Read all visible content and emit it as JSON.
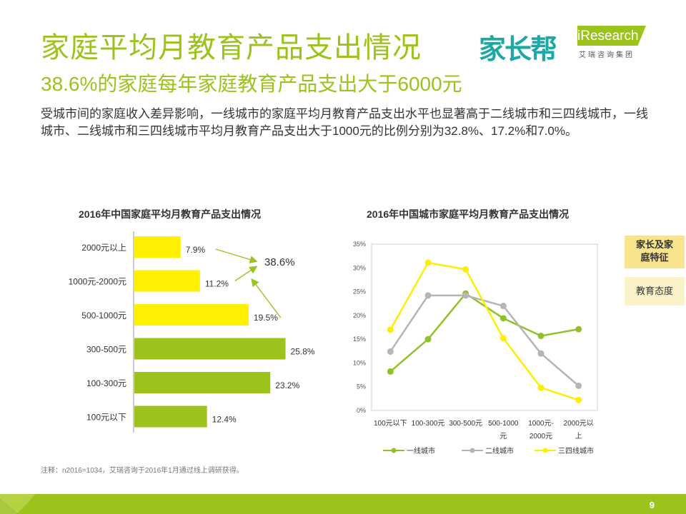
{
  "header": {
    "title": "家庭平均月教育产品支出情况",
    "subtitle": "38.6%的家庭每年家庭教育产品支出大于6000元",
    "description": "受城市间的家庭收入差异影响，一线城市的家庭平均月教育产品支出水平也显著高于二线城市和三四线城市，一线城市、二线城市和三四线城市平均月教育产品支出大于1000元的比例分别为32.8%、17.2%和7.0%。"
  },
  "logos": {
    "jiazhangbang": "家长帮",
    "iresearch": "iResearch",
    "iresearch_cn": "艾瑞咨询集团"
  },
  "side_tabs": [
    "家长及家庭特征",
    "教育态度"
  ],
  "side_tab_lines": [
    "家长及家",
    "庭特征"
  ],
  "footnote": "注释：n2016=1034，艾瑞咨询于2016年1月通过线上调研获得。",
  "page_number": "9",
  "colors": {
    "green": "#9bc31c",
    "yellow": "#ffef00",
    "gray": "#bdbdbd",
    "line_green": "#92c02b",
    "line_gray": "#b5b5b5",
    "line_yellow": "#ffee00"
  },
  "chart_data": [
    {
      "type": "bar",
      "orientation": "horizontal",
      "title": "2016年中国家庭平均月教育产品支出情况",
      "categories": [
        "2000元以上",
        "1000元-2000元",
        "500-1000元",
        "300-500元",
        "100-300元",
        "100元以下"
      ],
      "values": [
        7.9,
        11.2,
        19.5,
        25.8,
        23.2,
        12.4
      ],
      "value_labels": [
        "7.9%",
        "11.2%",
        "19.5%",
        "25.8%",
        "23.2%",
        "12.4%"
      ],
      "highlight_count": 3,
      "annotation": "38.6%"
    },
    {
      "type": "line",
      "title": "2016年中国城市家庭平均月教育产品支出情况",
      "categories": [
        "100元以下",
        "100-300元",
        "300-500元",
        "500-1000元",
        "1000元-2000元",
        "2000元以上"
      ],
      "category_lines": [
        [
          "100元以下"
        ],
        [
          "100-300元"
        ],
        [
          "300-500元"
        ],
        [
          "500-1000",
          "元"
        ],
        [
          "1000元-",
          "2000元"
        ],
        [
          "2000元以",
          "上"
        ]
      ],
      "ylim": [
        0,
        35
      ],
      "yticks": [
        "0%",
        "5%",
        "10%",
        "15%",
        "20%",
        "25%",
        "30%",
        "35%"
      ],
      "series": [
        {
          "name": "一线城市",
          "values": [
            8.2,
            15.0,
            24.6,
            19.4,
            15.7,
            17.1
          ]
        },
        {
          "name": "二线城市",
          "values": [
            12.4,
            24.2,
            24.2,
            22.0,
            12.0,
            5.2
          ]
        },
        {
          "name": "三四线城市",
          "values": [
            17.0,
            31.1,
            29.7,
            15.2,
            4.8,
            2.2
          ]
        }
      ],
      "legend": "bottom"
    }
  ]
}
